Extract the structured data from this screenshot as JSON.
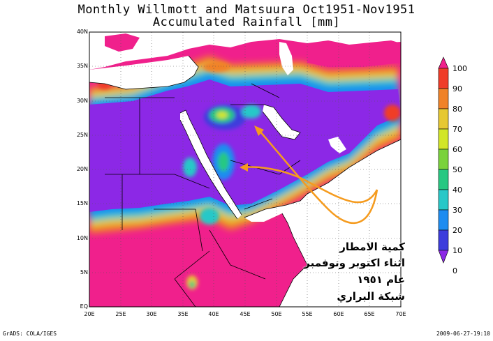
{
  "title": {
    "line1": "Monthly Willmott and Matsuura Oct1951-Nov1951",
    "line2": "Accumulated Rainfall [mm]"
  },
  "map": {
    "lat_labels": [
      "40N",
      "35N",
      "30N",
      "25N",
      "20N",
      "15N",
      "10N",
      "5N",
      "EQ"
    ],
    "lon_labels": [
      "20E",
      "25E",
      "30E",
      "35E",
      "40E",
      "45E",
      "50E",
      "55E",
      "60E",
      "65E",
      "70E"
    ],
    "lon_range": [
      20,
      70
    ],
    "lat_range": [
      0,
      40
    ]
  },
  "colorbar": {
    "levels": [
      "100",
      "90",
      "80",
      "70",
      "60",
      "50",
      "40",
      "30",
      "20",
      "10",
      "0"
    ],
    "colors": [
      "#f0208c",
      "#f03c28",
      "#f08228",
      "#e6c832",
      "#d2e628",
      "#7ad23c",
      "#28c882",
      "#28c8c8",
      "#1e8cf0",
      "#3c3cdc",
      "#8c28e6"
    ]
  },
  "annotation": {
    "lines": [
      "كمية الامطار",
      "اثناء اكتوبر ونوفمبر",
      "عام ١٩٥١",
      "شبكة البراري"
    ]
  },
  "footer": {
    "left": "GrADS: COLA/IGES",
    "right": "2009-06-27-19:10"
  }
}
